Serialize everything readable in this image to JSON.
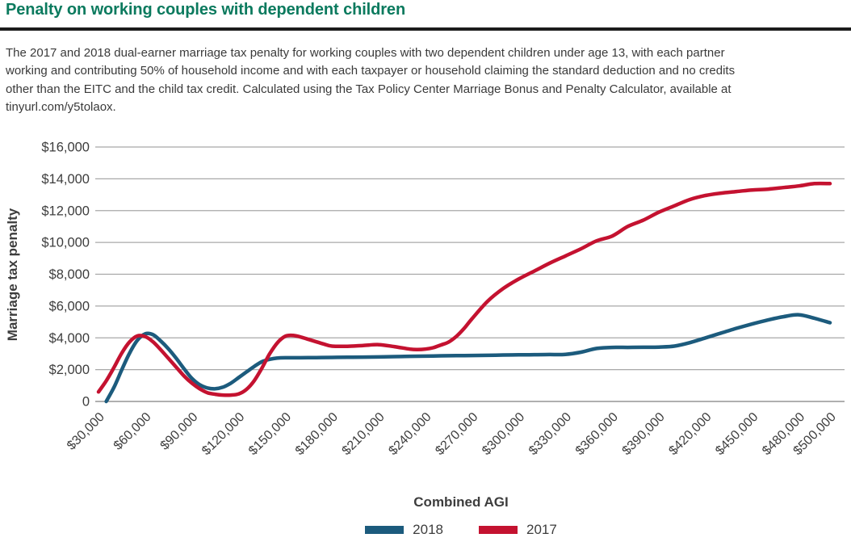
{
  "header": {
    "title": "Penalty on working couples with dependent children",
    "description_lines": [
      "The 2017 and 2018 dual-earner marriage tax penalty for working couples with two dependent children under age 13, with each partner",
      "working and contributing 50% of household income and with each taxpayer or household claiming the standard deduction and no credits",
      "other than the EITC and the child tax credit. Calculated using the Tax Policy Center Marriage Bonus and Penalty Calculator, available at",
      "tinyurl.com/y5tolaox."
    ]
  },
  "theme": {
    "title_color": "#0b7a5e",
    "rule_color": "#1c1c1c",
    "body_text_color": "#3a3a3a",
    "axis_text_color": "#3d3d3d"
  },
  "chart_data": {
    "type": "line",
    "title": "",
    "xlabel": "Combined AGI",
    "ylabel": "Marriage tax penalty",
    "ylim": [
      0,
      16000
    ],
    "grid": "horizontal",
    "grid_color": "#a8a8a8",
    "axis_line_color": "#7f7f7f",
    "tick_color": "#3d3d3d",
    "y_ticks": [
      0,
      2000,
      4000,
      6000,
      8000,
      10000,
      12000,
      14000,
      16000
    ],
    "y_tick_labels": [
      "0",
      "$2,000",
      "$4,000",
      "$6,000",
      "$8,000",
      "$10,000",
      "$12,000",
      "$14,000",
      "$16,000"
    ],
    "x_ticks": [
      30000,
      60000,
      90000,
      120000,
      150000,
      180000,
      210000,
      240000,
      270000,
      300000,
      330000,
      360000,
      390000,
      420000,
      450000,
      480000,
      500000
    ],
    "x_tick_labels": [
      "$30,000",
      "$60,000",
      "$90,000",
      "$120,000",
      "$150,000",
      "$180,000",
      "$210,000",
      "$240,000",
      "$270,000",
      "$300,000",
      "$330,000",
      "$360,000",
      "$390,000",
      "$420,000",
      "$450,000",
      "$480,000",
      "$500,000"
    ],
    "legend": {
      "position": "bottom",
      "entries": [
        {
          "label": "2018",
          "color": "#1c5b7d"
        },
        {
          "label": "2017",
          "color": "#c41230"
        }
      ]
    },
    "series": [
      {
        "name": "2018",
        "color": "#1c5b7d",
        "points": [
          [
            35000,
            0
          ],
          [
            40000,
            900
          ],
          [
            45000,
            2000
          ],
          [
            50000,
            3050
          ],
          [
            55000,
            3850
          ],
          [
            60000,
            4250
          ],
          [
            65000,
            4200
          ],
          [
            70000,
            3800
          ],
          [
            75000,
            3300
          ],
          [
            80000,
            2700
          ],
          [
            85000,
            2050
          ],
          [
            90000,
            1450
          ],
          [
            95000,
            1050
          ],
          [
            100000,
            850
          ],
          [
            105000,
            800
          ],
          [
            110000,
            900
          ],
          [
            115000,
            1150
          ],
          [
            120000,
            1500
          ],
          [
            125000,
            1850
          ],
          [
            130000,
            2200
          ],
          [
            135000,
            2500
          ],
          [
            140000,
            2650
          ],
          [
            145000,
            2730
          ],
          [
            150000,
            2750
          ],
          [
            160000,
            2750
          ],
          [
            170000,
            2760
          ],
          [
            180000,
            2770
          ],
          [
            190000,
            2780
          ],
          [
            200000,
            2790
          ],
          [
            210000,
            2800
          ],
          [
            220000,
            2820
          ],
          [
            230000,
            2840
          ],
          [
            240000,
            2850
          ],
          [
            250000,
            2870
          ],
          [
            260000,
            2880
          ],
          [
            270000,
            2890
          ],
          [
            280000,
            2900
          ],
          [
            290000,
            2920
          ],
          [
            300000,
            2930
          ],
          [
            310000,
            2940
          ],
          [
            320000,
            2950
          ],
          [
            330000,
            2960
          ],
          [
            340000,
            3100
          ],
          [
            350000,
            3330
          ],
          [
            360000,
            3400
          ],
          [
            370000,
            3400
          ],
          [
            380000,
            3410
          ],
          [
            390000,
            3420
          ],
          [
            400000,
            3480
          ],
          [
            410000,
            3700
          ],
          [
            420000,
            4000
          ],
          [
            430000,
            4300
          ],
          [
            440000,
            4600
          ],
          [
            450000,
            4870
          ],
          [
            460000,
            5120
          ],
          [
            470000,
            5330
          ],
          [
            480000,
            5450
          ],
          [
            490000,
            5230
          ],
          [
            500000,
            4950
          ]
        ]
      },
      {
        "name": "2017",
        "color": "#c41230",
        "points": [
          [
            30000,
            600
          ],
          [
            35000,
            1300
          ],
          [
            40000,
            2150
          ],
          [
            45000,
            3050
          ],
          [
            50000,
            3750
          ],
          [
            55000,
            4120
          ],
          [
            60000,
            4080
          ],
          [
            65000,
            3750
          ],
          [
            70000,
            3250
          ],
          [
            75000,
            2700
          ],
          [
            80000,
            2150
          ],
          [
            85000,
            1600
          ],
          [
            90000,
            1150
          ],
          [
            95000,
            800
          ],
          [
            100000,
            550
          ],
          [
            105000,
            450
          ],
          [
            110000,
            400
          ],
          [
            115000,
            400
          ],
          [
            120000,
            470
          ],
          [
            125000,
            750
          ],
          [
            130000,
            1300
          ],
          [
            135000,
            2100
          ],
          [
            140000,
            3000
          ],
          [
            145000,
            3700
          ],
          [
            150000,
            4100
          ],
          [
            155000,
            4150
          ],
          [
            160000,
            4050
          ],
          [
            165000,
            3900
          ],
          [
            170000,
            3750
          ],
          [
            175000,
            3600
          ],
          [
            180000,
            3480
          ],
          [
            190000,
            3470
          ],
          [
            200000,
            3520
          ],
          [
            210000,
            3570
          ],
          [
            220000,
            3450
          ],
          [
            230000,
            3290
          ],
          [
            235000,
            3260
          ],
          [
            240000,
            3290
          ],
          [
            245000,
            3380
          ],
          [
            250000,
            3550
          ],
          [
            255000,
            3740
          ],
          [
            260000,
            4100
          ],
          [
            265000,
            4600
          ],
          [
            270000,
            5200
          ],
          [
            280000,
            6300
          ],
          [
            290000,
            7100
          ],
          [
            300000,
            7700
          ],
          [
            310000,
            8200
          ],
          [
            320000,
            8700
          ],
          [
            330000,
            9150
          ],
          [
            340000,
            9600
          ],
          [
            350000,
            10100
          ],
          [
            360000,
            10400
          ],
          [
            370000,
            11000
          ],
          [
            380000,
            11400
          ],
          [
            390000,
            11900
          ],
          [
            400000,
            12300
          ],
          [
            410000,
            12700
          ],
          [
            420000,
            12950
          ],
          [
            430000,
            13100
          ],
          [
            440000,
            13200
          ],
          [
            450000,
            13300
          ],
          [
            460000,
            13350
          ],
          [
            470000,
            13450
          ],
          [
            480000,
            13550
          ],
          [
            490000,
            13700
          ],
          [
            500000,
            13700
          ]
        ]
      }
    ]
  }
}
